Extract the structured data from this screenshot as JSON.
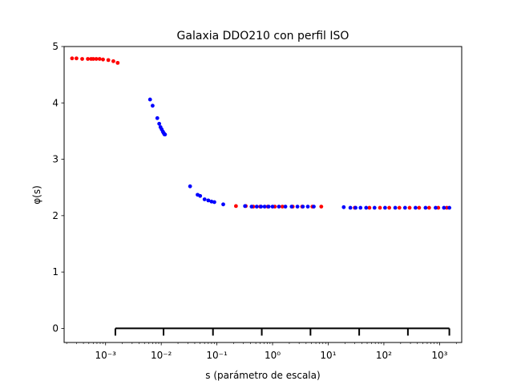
{
  "chart_data": {
    "type": "scatter",
    "title": "Galaxia DDO210 con perfil ISO",
    "xlabel": "s (parámetro de escala)",
    "ylabel": "φ(s)",
    "xscale": "log",
    "xlim": [
      0.00018,
      2500
    ],
    "ylim": [
      -0.25,
      5.0
    ],
    "x_ticks": [
      0.001,
      0.01,
      0.1,
      1,
      10,
      100,
      1000
    ],
    "x_tick_labels": [
      "10⁻³",
      "10⁻²",
      "10⁻¹",
      "10⁰",
      "10¹",
      "10²",
      "10³"
    ],
    "y_ticks": [
      0,
      1,
      2,
      3,
      4,
      5
    ],
    "y_tick_labels": [
      "0",
      "1",
      "2",
      "3",
      "4",
      "5"
    ],
    "grid": false,
    "series": [
      {
        "color": "#ff0000",
        "points": [
          [
            0.00025,
            4.79
          ],
          [
            0.0003,
            4.79
          ],
          [
            0.00038,
            4.78
          ],
          [
            0.00048,
            4.78
          ],
          [
            0.00055,
            4.78
          ],
          [
            0.0006,
            4.78
          ],
          [
            0.00068,
            4.78
          ],
          [
            0.00078,
            4.78
          ],
          [
            0.0009,
            4.77
          ],
          [
            0.00112,
            4.76
          ],
          [
            0.00138,
            4.74
          ],
          [
            0.00165,
            4.71
          ],
          [
            0.22,
            2.17
          ],
          [
            0.33,
            2.17
          ],
          [
            0.45,
            2.16
          ],
          [
            0.6,
            2.16
          ],
          [
            0.82,
            2.16
          ],
          [
            1.1,
            2.16
          ],
          [
            1.5,
            2.16
          ],
          [
            2.3,
            2.16
          ],
          [
            3.4,
            2.16
          ],
          [
            5.2,
            2.16
          ],
          [
            7.5,
            2.16
          ],
          [
            30,
            2.14
          ],
          [
            55,
            2.14
          ],
          [
            85,
            2.14
          ],
          [
            125,
            2.14
          ],
          [
            190,
            2.14
          ],
          [
            290,
            2.14
          ],
          [
            430,
            2.14
          ],
          [
            650,
            2.14
          ],
          [
            950,
            2.14
          ],
          [
            1350,
            2.14
          ]
        ]
      },
      {
        "color": "#0000ff",
        "points": [
          [
            0.0063,
            4.06
          ],
          [
            0.007,
            3.95
          ],
          [
            0.0085,
            3.73
          ],
          [
            0.0092,
            3.63
          ],
          [
            0.0097,
            3.57
          ],
          [
            0.0102,
            3.53
          ],
          [
            0.0107,
            3.49
          ],
          [
            0.011,
            3.47
          ],
          [
            0.0113,
            3.45
          ],
          [
            0.0115,
            3.44
          ],
          [
            0.0117,
            3.44
          ],
          [
            0.033,
            2.52
          ],
          [
            0.045,
            2.37
          ],
          [
            0.05,
            2.35
          ],
          [
            0.06,
            2.29
          ],
          [
            0.07,
            2.27
          ],
          [
            0.08,
            2.25
          ],
          [
            0.09,
            2.24
          ],
          [
            0.13,
            2.2
          ],
          [
            0.32,
            2.17
          ],
          [
            0.42,
            2.16
          ],
          [
            0.52,
            2.16
          ],
          [
            0.62,
            2.16
          ],
          [
            0.72,
            2.16
          ],
          [
            0.85,
            2.16
          ],
          [
            1.0,
            2.16
          ],
          [
            1.3,
            2.16
          ],
          [
            1.7,
            2.16
          ],
          [
            2.2,
            2.16
          ],
          [
            2.8,
            2.16
          ],
          [
            3.5,
            2.16
          ],
          [
            4.3,
            2.16
          ],
          [
            5.5,
            2.16
          ],
          [
            19,
            2.15
          ],
          [
            25,
            2.14
          ],
          [
            31,
            2.14
          ],
          [
            38,
            2.14
          ],
          [
            48,
            2.14
          ],
          [
            68,
            2.14
          ],
          [
            105,
            2.14
          ],
          [
            160,
            2.14
          ],
          [
            240,
            2.14
          ],
          [
            370,
            2.14
          ],
          [
            560,
            2.14
          ],
          [
            850,
            2.14
          ],
          [
            1200,
            2.14
          ],
          [
            1500,
            2.14
          ]
        ]
      }
    ],
    "annotations": [
      {
        "type": "bracket",
        "y": 0,
        "x_range": [
          0.0015,
          1500
        ],
        "tick_x": [
          0.0015,
          0.011,
          0.085,
          0.64,
          4.8,
          36,
          270,
          1500
        ]
      }
    ]
  }
}
